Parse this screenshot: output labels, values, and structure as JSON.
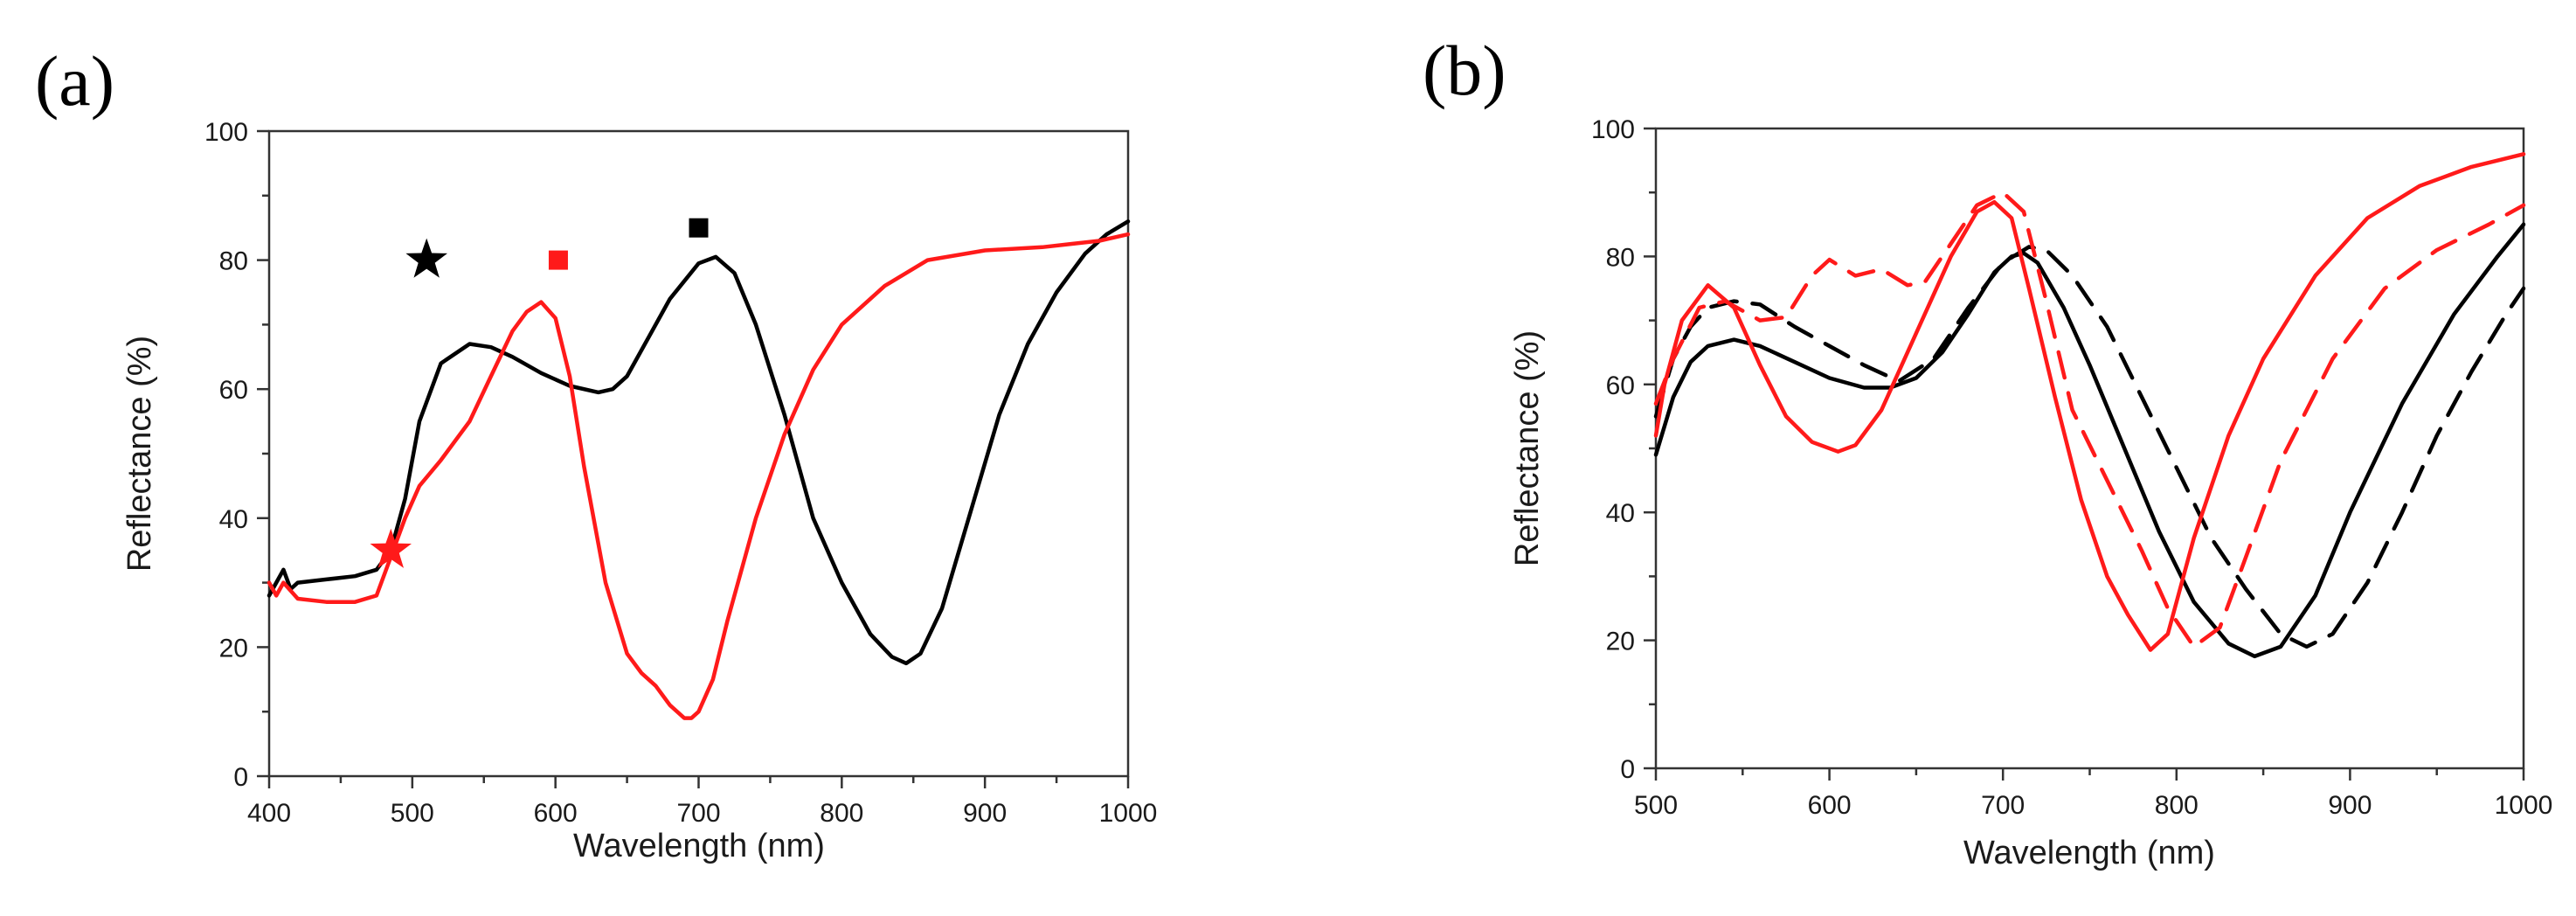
{
  "colors": {
    "black_series": "#000000",
    "red_series": "#ff1a1a",
    "axis": "#333333"
  },
  "chart_data": [
    {
      "panel_label": "(a)",
      "type": "line",
      "xlabel": "Wavelength (nm)",
      "ylabel": "Reflectance (%)",
      "xlim": [
        400,
        1000
      ],
      "ylim": [
        0,
        100
      ],
      "xticks": [
        400,
        500,
        600,
        700,
        800,
        900,
        1000
      ],
      "yticks": [
        0,
        20,
        40,
        60,
        80,
        100
      ],
      "grid": false,
      "series": [
        {
          "name": "black",
          "color": "#000000",
          "dash": "solid",
          "x": [
            400,
            405,
            410,
            415,
            420,
            440,
            460,
            475,
            485,
            495,
            505,
            520,
            540,
            555,
            570,
            590,
            610,
            630,
            640,
            650,
            660,
            680,
            700,
            712,
            725,
            740,
            760,
            780,
            800,
            820,
            835,
            845,
            855,
            870,
            890,
            910,
            930,
            950,
            970,
            985,
            1000
          ],
          "y": [
            28,
            30,
            32,
            29,
            30,
            30.5,
            31,
            32,
            35,
            43,
            55,
            64,
            67,
            66.5,
            65,
            62.5,
            60.5,
            59.5,
            60,
            62,
            66,
            74,
            79.5,
            80.5,
            78,
            70,
            56,
            40,
            30,
            22,
            18.5,
            17.5,
            19,
            26,
            41,
            56,
            67,
            75,
            81,
            84,
            86
          ]
        },
        {
          "name": "red",
          "color": "#ff1a1a",
          "dash": "solid",
          "x": [
            400,
            405,
            410,
            420,
            440,
            460,
            475,
            485,
            495,
            505,
            520,
            540,
            555,
            570,
            580,
            590,
            600,
            610,
            620,
            635,
            650,
            660,
            670,
            680,
            690,
            695,
            700,
            710,
            720,
            740,
            760,
            780,
            800,
            830,
            860,
            900,
            940,
            960,
            980,
            1000
          ],
          "y": [
            30,
            28,
            30,
            27.5,
            27,
            27,
            28,
            34,
            40,
            45,
            49,
            55,
            62,
            69,
            72,
            73.5,
            71,
            62,
            48,
            30,
            19,
            16,
            14,
            11,
            9,
            9,
            10,
            15,
            24,
            40,
            53,
            63,
            70,
            76,
            80,
            81.5,
            82,
            82.5,
            83,
            84
          ]
        }
      ],
      "markers": [
        {
          "name": "black-star",
          "shape": "star",
          "color": "#000000",
          "x": 510,
          "y": 80
        },
        {
          "name": "red-square",
          "shape": "square",
          "color": "#ff1a1a",
          "x": 602,
          "y": 80
        },
        {
          "name": "black-square",
          "shape": "square",
          "color": "#000000",
          "x": 700,
          "y": 85
        },
        {
          "name": "red-star",
          "shape": "star",
          "color": "#ff1a1a",
          "x": 485,
          "y": 35
        }
      ]
    },
    {
      "panel_label": "(b)",
      "type": "line",
      "xlabel": "Wavelength (nm)",
      "ylabel": "Reflectance (%)",
      "xlim": [
        500,
        1000
      ],
      "ylim": [
        0,
        100
      ],
      "xticks": [
        500,
        600,
        700,
        800,
        900,
        1000
      ],
      "yticks": [
        0,
        20,
        40,
        60,
        80,
        100
      ],
      "grid": false,
      "series": [
        {
          "name": "black-solid",
          "color": "#000000",
          "dash": "solid",
          "x": [
            500,
            510,
            520,
            530,
            545,
            560,
            580,
            600,
            620,
            635,
            650,
            665,
            680,
            695,
            705,
            712,
            720,
            735,
            750,
            770,
            790,
            810,
            830,
            845,
            860,
            880,
            900,
            930,
            960,
            985,
            1000
          ],
          "y": [
            49,
            58,
            63.5,
            66,
            67,
            66,
            63.5,
            61,
            59.5,
            59.5,
            61,
            65,
            71,
            77.5,
            80,
            80.5,
            79,
            72,
            63,
            50,
            37,
            26,
            19.5,
            17.5,
            19,
            27,
            40,
            57,
            71,
            80,
            85
          ]
        },
        {
          "name": "black-dashed",
          "color": "#000000",
          "dash": "dashed",
          "x": [
            500,
            510,
            520,
            530,
            545,
            560,
            580,
            600,
            620,
            640,
            660,
            680,
            700,
            715,
            725,
            740,
            760,
            780,
            800,
            820,
            840,
            860,
            875,
            890,
            910,
            930,
            950,
            970,
            990,
            1000
          ],
          "y": [
            55,
            64,
            69,
            72,
            73,
            72.5,
            69,
            66,
            63,
            60.5,
            64,
            72,
            79,
            81.5,
            81,
            77,
            69,
            58,
            47,
            36,
            28,
            21,
            19,
            21,
            29,
            40,
            52,
            62,
            71,
            75
          ]
        },
        {
          "name": "red-solid",
          "color": "#ff1a1a",
          "dash": "solid",
          "x": [
            500,
            505,
            515,
            530,
            545,
            560,
            575,
            590,
            605,
            615,
            630,
            650,
            670,
            685,
            695,
            705,
            715,
            730,
            745,
            760,
            772,
            785,
            795,
            810,
            830,
            850,
            880,
            910,
            940,
            970,
            1000
          ],
          "y": [
            52,
            60,
            70,
            75.5,
            72,
            63,
            55,
            51,
            49.5,
            50.5,
            56,
            68,
            80,
            87,
            88.5,
            86,
            75,
            58,
            42,
            30,
            24,
            18.5,
            21,
            36,
            52,
            64,
            77,
            86,
            91,
            94,
            96
          ]
        },
        {
          "name": "red-dashed",
          "color": "#ff1a1a",
          "dash": "dashed",
          "x": [
            500,
            510,
            525,
            540,
            560,
            575,
            590,
            600,
            615,
            630,
            645,
            655,
            670,
            685,
            700,
            712,
            725,
            740,
            760,
            780,
            795,
            810,
            825,
            840,
            860,
            890,
            920,
            950,
            980,
            1000
          ],
          "y": [
            57,
            64,
            72,
            73,
            70,
            70.5,
            77,
            79.5,
            77,
            78,
            75.5,
            76,
            82,
            88,
            90,
            87,
            73,
            56,
            45,
            34,
            25,
            19,
            22,
            33,
            48,
            64,
            75,
            81,
            85,
            88
          ]
        }
      ],
      "markers": []
    }
  ]
}
